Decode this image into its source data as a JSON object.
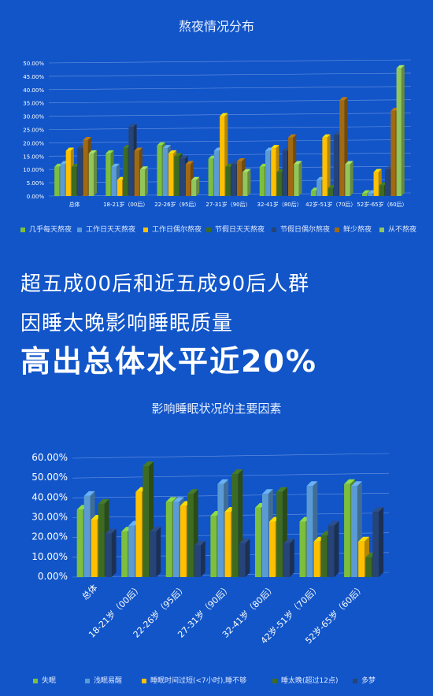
{
  "headline": {
    "line1": "超五成00后和近五成90后人群",
    "line2": "因睡太晚影响睡眠质量",
    "line3": "高出总体水平近20%"
  },
  "chart_data": [
    {
      "type": "bar",
      "title": "熬夜情况分布",
      "categories": [
        "总体",
        "18-21岁（00后）",
        "22-26岁（95后）",
        "27-31岁（90后）",
        "32-41岁（80后）",
        "42岁-51岁（70后）",
        "52岁-65岁（60后）"
      ],
      "ylim": [
        0,
        50
      ],
      "ytick_labels": [
        "0.00%",
        "5.00%",
        "10.00%",
        "15.00%",
        "20.00%",
        "25.00%",
        "30.00%",
        "35.00%",
        "40.00%",
        "45.00%",
        "50.00%"
      ],
      "grid": true,
      "legend_position": "bottom",
      "series": [
        {
          "name": "几乎每天熬夜",
          "color": "#7cbf3f",
          "values": [
            11,
            16,
            19,
            14,
            11,
            2,
            1
          ]
        },
        {
          "name": "工作日天天熬夜",
          "color": "#5b9bd5",
          "values": [
            12,
            11,
            18,
            17,
            17,
            6,
            1
          ]
        },
        {
          "name": "工作日偶尔熬夜",
          "color": "#ffc000",
          "values": [
            17,
            6,
            16,
            30,
            18,
            22,
            9
          ]
        },
        {
          "name": "节假日天天熬夜",
          "color": "#3e6b22",
          "values": [
            11,
            18,
            15,
            11,
            9,
            3,
            4
          ]
        },
        {
          "name": "节假日偶尔熬夜",
          "color": "#264478",
          "values": [
            18,
            26,
            14,
            12,
            17,
            23,
            10
          ]
        },
        {
          "name": "鲜少熬夜",
          "color": "#a16a12",
          "values": [
            21,
            17,
            12,
            13,
            22,
            36,
            32
          ]
        },
        {
          "name": "从不熬夜",
          "color": "#92c65a",
          "values": [
            16,
            10,
            6,
            9,
            12,
            12,
            48
          ]
        }
      ]
    },
    {
      "type": "bar",
      "title": "影响睡眠状况的主要因素",
      "categories": [
        "总体",
        "18-21岁（00后）",
        "22-26岁（95后）",
        "27-31岁（90后）",
        "32-41岁（80后）",
        "42岁-51岁（70后）",
        "52岁-65岁（60后）"
      ],
      "ylim": [
        0,
        60
      ],
      "ytick_labels": [
        "0.00%",
        "10.00%",
        "20.00%",
        "30.00%",
        "40.00%",
        "50.00%",
        "60.00%"
      ],
      "grid": true,
      "legend_position": "bottom",
      "series": [
        {
          "name": "失眠",
          "color": "#7cbf3f",
          "values": [
            34,
            23,
            38,
            31,
            35,
            28,
            47
          ]
        },
        {
          "name": "浅眠易醒",
          "color": "#5b9bd5",
          "values": [
            41,
            26,
            38,
            47,
            42,
            46,
            46
          ]
        },
        {
          "name": "睡眠时间过短(<7小时),睡不够",
          "color": "#ffc000",
          "values": [
            29,
            43,
            36,
            33,
            28,
            18,
            18
          ]
        },
        {
          "name": "睡太晚(超过12点)",
          "color": "#3e6b22",
          "values": [
            37,
            56,
            42,
            52,
            43,
            21,
            10
          ]
        },
        {
          "name": "多梦",
          "color": "#264478",
          "values": [
            22,
            23,
            16,
            17,
            17,
            26,
            33
          ]
        }
      ]
    }
  ]
}
